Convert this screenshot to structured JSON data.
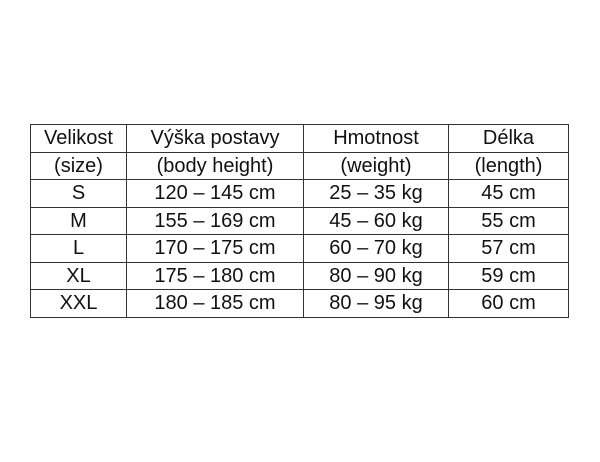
{
  "table": {
    "header": [
      [
        "Velikost",
        "Výška postavy",
        "Hmotnost",
        "Délka"
      ],
      [
        "(size)",
        "(body height)",
        "(weight)",
        "(length)"
      ]
    ],
    "rows": [
      [
        "S",
        "120 – 145 cm",
        "25 – 35 kg",
        "45 cm"
      ],
      [
        "M",
        "155 – 169 cm",
        "45 – 60 kg",
        "55 cm"
      ],
      [
        "L",
        "170 – 175 cm",
        "60 – 70 kg",
        "57 cm"
      ],
      [
        "XL",
        "175 – 180 cm",
        "80 – 90 kg",
        "59 cm"
      ],
      [
        "XXL",
        "180 – 185 cm",
        "80 – 95 kg",
        "60 cm"
      ]
    ]
  }
}
